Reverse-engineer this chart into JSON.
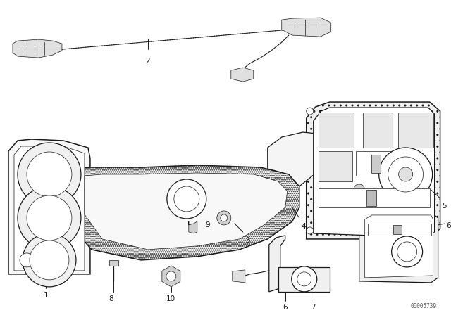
{
  "bg_color": "#ffffff",
  "fig_width": 6.4,
  "fig_height": 4.48,
  "dpi": 100,
  "watermark": "00005739",
  "line_color": "#1a1a1a",
  "label_fontsize": 7.5,
  "lw_main": 0.9,
  "lw_thin": 0.5,
  "lw_thick": 1.1
}
